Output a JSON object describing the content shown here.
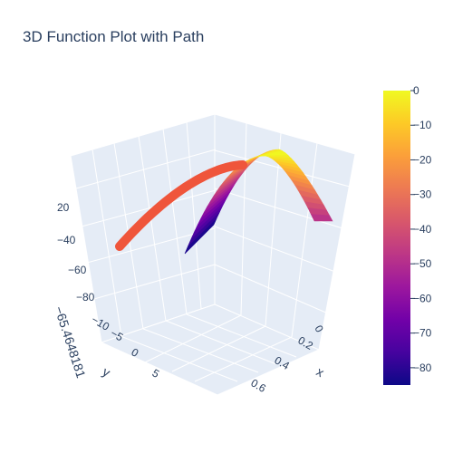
{
  "figure": {
    "title": "3D Function Plot with Path"
  },
  "chart_data": {
    "type": "surface3d",
    "title": "3D Function Plot with Path",
    "axes": {
      "x": {
        "title": "x",
        "ticks": [
          "0",
          "0.2",
          "0.4",
          "0.6"
        ]
      },
      "y": {
        "title": "y",
        "ticks": [
          "−10",
          "−5",
          "0",
          "5"
        ]
      },
      "z": {
        "title": "−65.4648181",
        "ticks": [
          "20",
          "−40",
          "−60",
          "−80"
        ]
      }
    },
    "surface": {
      "colorscale": "plasma",
      "x_range": [
        0,
        0.7
      ],
      "z_range": [
        -85,
        0
      ]
    },
    "path": {
      "color": "#ef553b",
      "mode": "lines"
    },
    "colorbar": {
      "ticks": [
        "0",
        "−10",
        "−20",
        "−30",
        "−40",
        "−50",
        "−60",
        "−70",
        "−80"
      ],
      "colors": [
        "#0d0887",
        "#46039f",
        "#7201a8",
        "#9c179e",
        "#bd3786",
        "#d8576b",
        "#ed7953",
        "#fb9f3a",
        "#fdca26",
        "#f0f921"
      ]
    }
  }
}
